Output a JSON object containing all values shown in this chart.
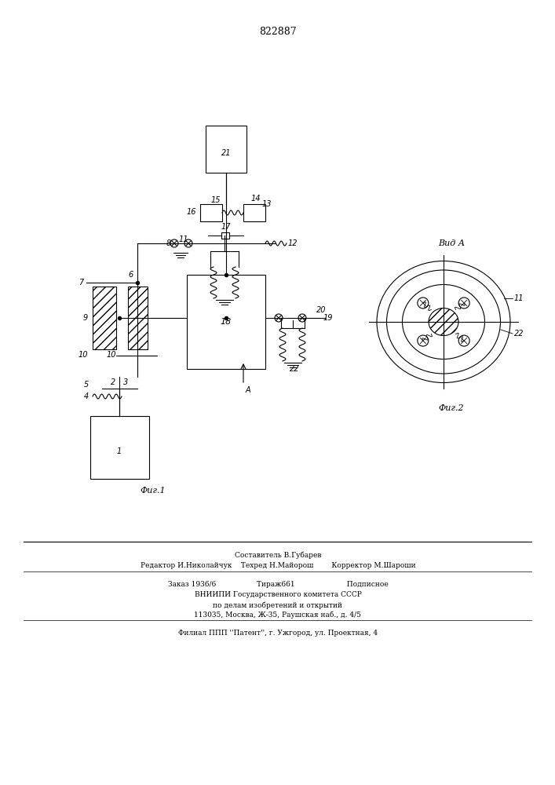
{
  "patent_number": "822887",
  "fig1_caption": "Фиг.1",
  "fig2_caption": "Фиг.2",
  "vid_a_label": "Вид А",
  "label_11": "11",
  "label_22": "22",
  "footer_line1": "Составитель В.Губарев",
  "footer_line2": "Редактор И.Николайчук    Техред Н.Майорош        Корректор М.Шароши",
  "footer_line3": "Заказ 1936/6                  Тираж661                       Подписное",
  "footer_line4": "ВНИИПИ Государственного комитета СССР",
  "footer_line5": "по делам изобретений и открытий",
  "footer_line6": "113035, Москва, Ж-35, Раушская наб., д. 4/5",
  "footer_line7": "Филиал ППП ''Патент'', г. Ужгород, ул. Проектная, 4",
  "bg_color": "#ffffff",
  "line_color": "#000000"
}
